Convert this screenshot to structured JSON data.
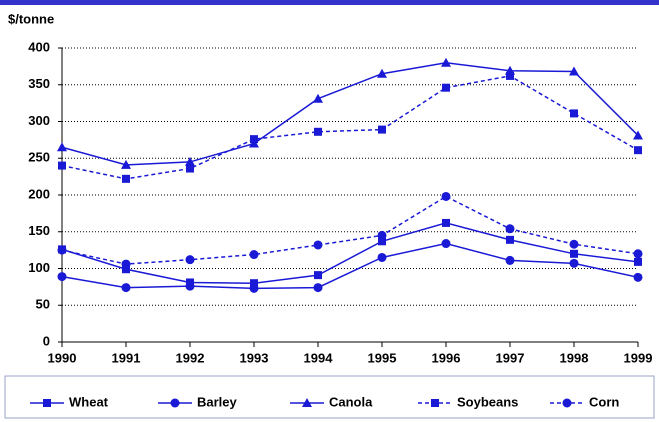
{
  "chart_data": {
    "type": "line",
    "y_label": "$/tonne",
    "x": [
      1990,
      1991,
      1992,
      1993,
      1994,
      1995,
      1996,
      1997,
      1998,
      1999
    ],
    "xlim": [
      1990,
      1999
    ],
    "xticks": [
      1990,
      1991,
      1992,
      1993,
      1994,
      1995,
      1996,
      1997,
      1998,
      1999
    ],
    "ylim": [
      0,
      400
    ],
    "yticks": [
      0,
      50,
      100,
      150,
      200,
      250,
      300,
      350,
      400
    ],
    "grid": true,
    "legend": "bottom",
    "series": [
      {
        "name": "Wheat",
        "color": "#1a1ad6",
        "marker": "square",
        "dashed": false,
        "values": [
          126,
          99,
          81,
          80,
          91,
          137,
          162,
          139,
          120,
          109
        ]
      },
      {
        "name": "Barley",
        "color": "#1a1ad6",
        "marker": "circle",
        "dashed": false,
        "values": [
          89,
          74,
          76,
          73,
          74,
          115,
          134,
          111,
          107,
          88
        ]
      },
      {
        "name": "Canola",
        "color": "#1a1ad6",
        "marker": "triangle",
        "dashed": false,
        "values": [
          265,
          241,
          245,
          270,
          331,
          365,
          380,
          369,
          368,
          281
        ]
      },
      {
        "name": "Soybeans",
        "color": "#1a1ad6",
        "marker": "square",
        "dashed": true,
        "values": [
          240,
          222,
          236,
          276,
          286,
          289,
          346,
          362,
          311,
          261
        ]
      },
      {
        "name": "Corn",
        "color": "#1a1ad6",
        "marker": "circle",
        "dashed": true,
        "values": [
          125,
          106,
          112,
          119,
          132,
          145,
          198,
          154,
          133,
          120
        ]
      }
    ]
  }
}
